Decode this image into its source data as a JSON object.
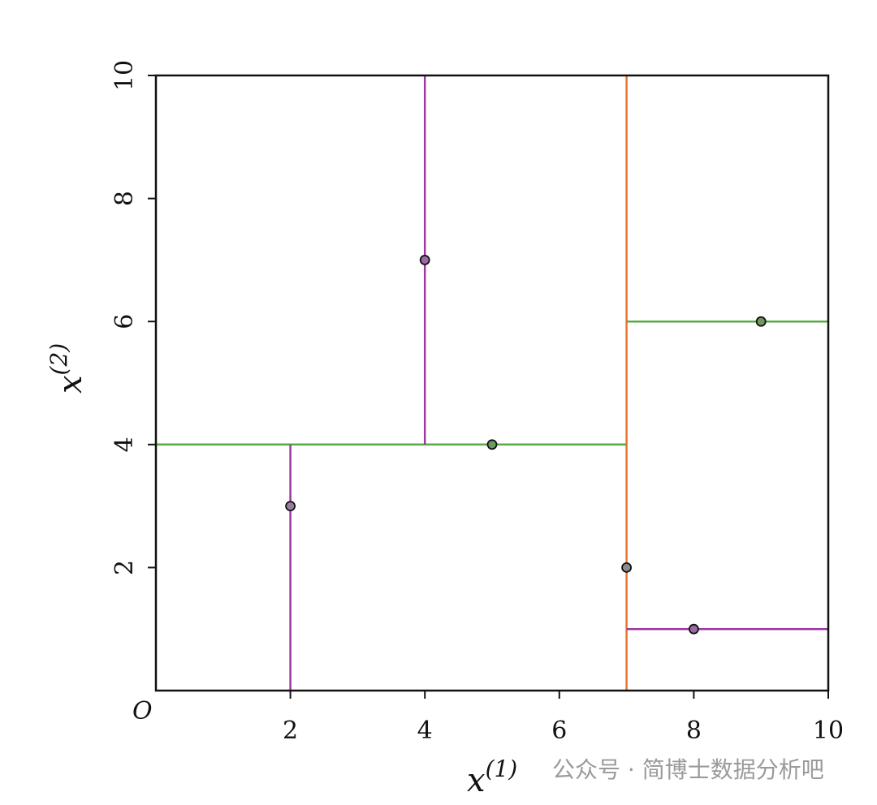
{
  "chart_data": {
    "type": "scatter",
    "xlim": [
      0,
      10
    ],
    "ylim": [
      0,
      10
    ],
    "xticks": [
      2,
      4,
      6,
      8,
      10
    ],
    "yticks": [
      2,
      4,
      6,
      8,
      10
    ],
    "origin_label": "O",
    "xlabel": {
      "base": "x",
      "sup": "(1)"
    },
    "ylabel": {
      "base": "x",
      "sup": "(2)"
    },
    "points": {
      "x": [
        2,
        4,
        5,
        7,
        8,
        9
      ],
      "y": [
        3,
        7,
        4,
        2,
        1,
        6
      ],
      "colors": [
        "#9a7ba3",
        "#9a6aa6",
        "#6e9a62",
        "#8c8c8c",
        "#9a6aa6",
        "#6e9a62"
      ]
    },
    "segments": [
      {
        "x": [
          7,
          7
        ],
        "y": [
          0,
          10
        ],
        "color": "#e8762c"
      },
      {
        "x": [
          0,
          7
        ],
        "y": [
          4,
          4
        ],
        "color": "#5aab45"
      },
      {
        "x": [
          7,
          10
        ],
        "y": [
          6,
          6
        ],
        "color": "#5aab45"
      },
      {
        "x": [
          2,
          2
        ],
        "y": [
          0,
          4
        ],
        "color": "#9b3a9e"
      },
      {
        "x": [
          4,
          4
        ],
        "y": [
          4,
          10
        ],
        "color": "#9b3a9e"
      },
      {
        "x": [
          7,
          10
        ],
        "y": [
          1,
          1
        ],
        "color": "#9b3a9e"
      }
    ],
    "watermark": "公众号 · 简博士数据分析吧"
  }
}
